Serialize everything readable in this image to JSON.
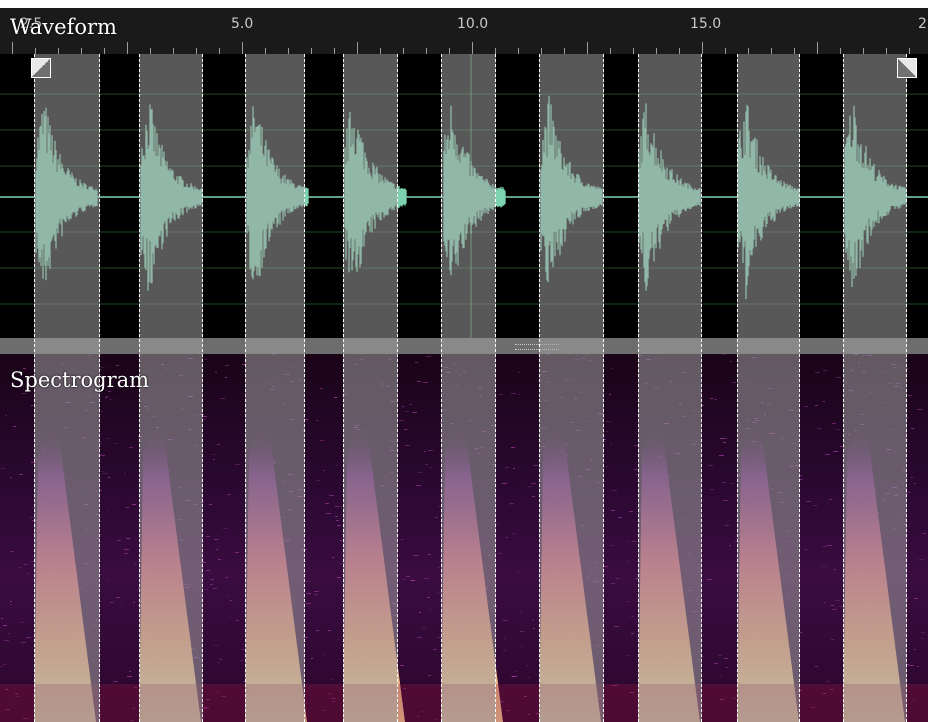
{
  "ruler": {
    "labels": [
      "2.5",
      "5.0",
      "10.0",
      "15.0",
      "2"
    ]
  },
  "waveform": {
    "title": "Waveform",
    "color": "#7dd3b0"
  },
  "spectrogram": {
    "title": "Spectrogram"
  },
  "selections": [
    {
      "start": 0,
      "end": 1
    },
    {
      "start": 1,
      "end": 2
    },
    {
      "start": 2,
      "end": 3
    },
    {
      "start": 3,
      "end": 4
    },
    {
      "start": 4,
      "end": 5
    },
    {
      "start": 5,
      "end": 6
    },
    {
      "start": 6,
      "end": 7
    },
    {
      "start": 7,
      "end": 8
    },
    {
      "start": 8,
      "end": 9
    }
  ],
  "colors": {
    "background": "#000000",
    "ruler": "#1a1a1a",
    "selection": "#a0a0a0",
    "waveform": "#7dd3b0",
    "spectro_hot": "#fde6a0",
    "spectro_mid": "#e0607a",
    "spectro_low": "#6a1a7a"
  },
  "icons": [
    "selection-start-handle-icon",
    "selection-end-handle-icon",
    "resize-grip-icon"
  ]
}
